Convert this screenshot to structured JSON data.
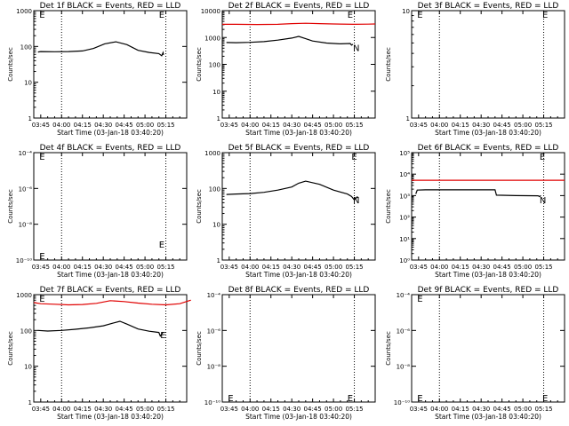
{
  "figure": {
    "background": "#ffffff",
    "axis_color": "#000000",
    "events_color": "#000000",
    "lld_color": "#e00000",
    "vline_style": "dotted",
    "time_ticks": [
      "03:45",
      "04:00",
      "04:15",
      "04:30",
      "04:45",
      "05:00",
      "05:15"
    ]
  },
  "chart_data": [
    {
      "type": "line",
      "title": "Det 1f BLACK = Events, RED = LLD",
      "xlabel": "Start Time (03-Jan-18 03:40:20)",
      "ylabel": "Counts/sec",
      "yscale": "log",
      "ylim": [
        1,
        1000
      ],
      "yticks": [
        "1",
        "10",
        "100",
        "1000"
      ],
      "vlines": [
        15,
        90
      ],
      "markers": [
        {
          "x": -1,
          "y": 1000,
          "label": "E"
        },
        {
          "x": 85,
          "y": 1000,
          "label": "E"
        }
      ],
      "series": [
        {
          "role": "events",
          "color": "#000000",
          "x": [
            -2,
            0,
            10,
            20,
            30,
            38,
            46,
            54,
            62,
            70,
            78,
            85,
            87,
            88,
            88.3
          ],
          "y": [
            70,
            72,
            71,
            72,
            75,
            88,
            118,
            135,
            112,
            78,
            68,
            63,
            55,
            67,
            58
          ]
        }
      ]
    },
    {
      "type": "line",
      "title": "Det 2f BLACK = Events, RED = LLD",
      "xlabel": "Start Time (03-Jan-18 03:40:20)",
      "ylabel": "Counts/sec",
      "yscale": "log",
      "ylim": [
        1,
        10000
      ],
      "yticks": [
        "1",
        "10",
        "100",
        "1000",
        "10000"
      ],
      "vlines": [
        15,
        90
      ],
      "markers": [
        {
          "x": 85,
          "y": 10000,
          "label": "E"
        },
        {
          "x": 89,
          "y": 500,
          "label": "N"
        }
      ],
      "series": [
        {
          "role": "lld",
          "color": "#e00000",
          "x": [
            -5,
            5,
            20,
            35,
            45,
            55,
            65,
            75,
            90,
            100,
            105
          ],
          "y": [
            3100,
            3100,
            3050,
            3100,
            3300,
            3400,
            3300,
            3200,
            3100,
            3150,
            3200
          ]
        },
        {
          "role": "events",
          "color": "#000000",
          "x": [
            -2,
            5,
            15,
            25,
            35,
            45,
            50,
            55,
            60,
            70,
            80,
            87,
            88,
            89
          ],
          "y": [
            650,
            640,
            660,
            700,
            800,
            950,
            1100,
            900,
            740,
            620,
            580,
            600,
            520,
            560
          ]
        }
      ]
    },
    {
      "type": "line",
      "title": "Det 3f BLACK = Events, RED = LLD",
      "xlabel": "Start Time (03-Jan-18 03:40:20)",
      "ylabel": "Counts/sec",
      "yscale": "log",
      "ylim": [
        1,
        10
      ],
      "yticks": [
        "1",
        "10"
      ],
      "vlines": [
        15,
        90
      ],
      "markers": [
        {
          "x": -1,
          "y": 10,
          "label": "E"
        },
        {
          "x": 89,
          "y": 10,
          "label": "E"
        }
      ],
      "series": []
    },
    {
      "type": "line",
      "title": "Det 4f BLACK = Events, RED = LLD",
      "xlabel": "Start Time (03-Jan-18 03:40:20)",
      "ylabel": "Counts/sec",
      "yscale": "log",
      "ylim": [
        1e-10,
        0.0001
      ],
      "yticks": [
        "10⁻¹⁰",
        "10⁻⁸",
        "10⁻⁶",
        "10⁻⁴"
      ],
      "vlines": [
        15,
        90
      ],
      "markers": [
        {
          "x": -1,
          "y": 0.0001,
          "label": "E"
        },
        {
          "x": -1,
          "y": 1e-10,
          "label": "E"
        },
        {
          "x": 85,
          "y": 1e-09,
          "label": "E"
        }
      ],
      "series": []
    },
    {
      "type": "line",
      "title": "Det 5f BLACK = Events, RED = LLD",
      "xlabel": "Start Time (03-Jan-18 03:40:20)",
      "ylabel": "Counts/sec",
      "yscale": "log",
      "ylim": [
        1,
        1000
      ],
      "yticks": [
        "1",
        "10",
        "100",
        "1000"
      ],
      "vlines": [
        15,
        90
      ],
      "markers": [
        {
          "x": 88,
          "y": 1000,
          "label": "E"
        },
        {
          "x": 89,
          "y": 55,
          "label": "N"
        }
      ],
      "series": [
        {
          "role": "events",
          "color": "#000000",
          "x": [
            -2,
            5,
            15,
            25,
            35,
            45,
            50,
            55,
            65,
            75,
            85,
            88,
            90,
            92,
            93
          ],
          "y": [
            68,
            70,
            72,
            78,
            90,
            110,
            140,
            160,
            130,
            90,
            70,
            60,
            48,
            58,
            55
          ]
        }
      ]
    },
    {
      "type": "line",
      "title": "Det 6f BLACK = Events, RED = LLD",
      "xlabel": "Start Time (03-Jan-18 03:40:20)",
      "ylabel": "Counts/sec",
      "yscale": "log",
      "ylim": [
        1,
        100000
      ],
      "yticks": [
        "10⁰",
        "10¹",
        "10²",
        "10³",
        "10⁴",
        "10⁵"
      ],
      "vlines": [
        15,
        90
      ],
      "markers": [
        {
          "x": 87,
          "y": 100000,
          "label": "E"
        },
        {
          "x": 87,
          "y": 780,
          "label": "N"
        }
      ],
      "series": [
        {
          "role": "lld",
          "color": "#e00000",
          "x": [
            -5,
            105
          ],
          "y": [
            5200,
            5200
          ]
        },
        {
          "role": "events",
          "color": "#000000",
          "x": [
            -2,
            -1,
            5,
            20,
            40,
            55,
            56,
            70,
            86,
            87,
            88
          ],
          "y": [
            1200,
            1800,
            1850,
            1850,
            1850,
            1850,
            1050,
            1000,
            980,
            900,
            1000
          ]
        }
      ]
    },
    {
      "type": "line",
      "title": "Det 7f BLACK = Events, RED = LLD",
      "xlabel": "Start Time (03-Jan-18 03:40:20)",
      "ylabel": "Counts/sec",
      "yscale": "log",
      "ylim": [
        1,
        1000
      ],
      "yticks": [
        "1",
        "10",
        "100",
        "1000"
      ],
      "vlines": [
        15,
        90
      ],
      "markers": [
        {
          "x": -1,
          "y": 1000,
          "label": "E"
        },
        {
          "x": 86,
          "y": 85,
          "label": "E"
        }
      ],
      "series": [
        {
          "role": "lld",
          "color": "#e00000",
          "x": [
            -5,
            0,
            10,
            20,
            30,
            40,
            50,
            60,
            70,
            80,
            90,
            100,
            108
          ],
          "y": [
            600,
            560,
            540,
            520,
            530,
            570,
            680,
            640,
            580,
            540,
            520,
            560,
            700
          ]
        },
        {
          "role": "events",
          "color": "#000000",
          "x": [
            -2,
            5,
            15,
            25,
            35,
            45,
            52,
            57,
            62,
            70,
            78,
            85,
            86,
            88
          ],
          "y": [
            100,
            96,
            100,
            108,
            118,
            135,
            160,
            180,
            150,
            110,
            95,
            88,
            70,
            90
          ]
        }
      ]
    },
    {
      "type": "line",
      "title": "Det 8f BLACK = Events, RED = LLD",
      "xlabel": "Start Time (03-Jan-18 03:40:20)",
      "ylabel": "Counts/sec",
      "yscale": "log",
      "ylim": [
        1e-10,
        0.0001
      ],
      "yticks": [
        "10⁻¹⁰",
        "10⁻⁸",
        "10⁻⁶",
        "10⁻⁴"
      ],
      "vlines": [
        15,
        90
      ],
      "markers": [
        {
          "x": -1,
          "y": 1e-10,
          "label": "E"
        },
        {
          "x": 85,
          "y": 1e-10,
          "label": "E"
        }
      ],
      "series": []
    },
    {
      "type": "line",
      "title": "Det 9f BLACK = Events, RED = LLD",
      "xlabel": "Start Time (03-Jan-18 03:40:20)",
      "ylabel": "Counts/sec",
      "yscale": "log",
      "ylim": [
        1e-10,
        0.0001
      ],
      "yticks": [
        "10⁻¹⁰",
        "10⁻⁸",
        "10⁻⁶",
        "10⁻⁴"
      ],
      "vlines": [
        15,
        90
      ],
      "markers": [
        {
          "x": -1,
          "y": 0.0001,
          "label": "E"
        },
        {
          "x": -1,
          "y": 1e-10,
          "label": "E"
        },
        {
          "x": 89,
          "y": 1e-10,
          "label": "E"
        }
      ],
      "series": []
    }
  ]
}
